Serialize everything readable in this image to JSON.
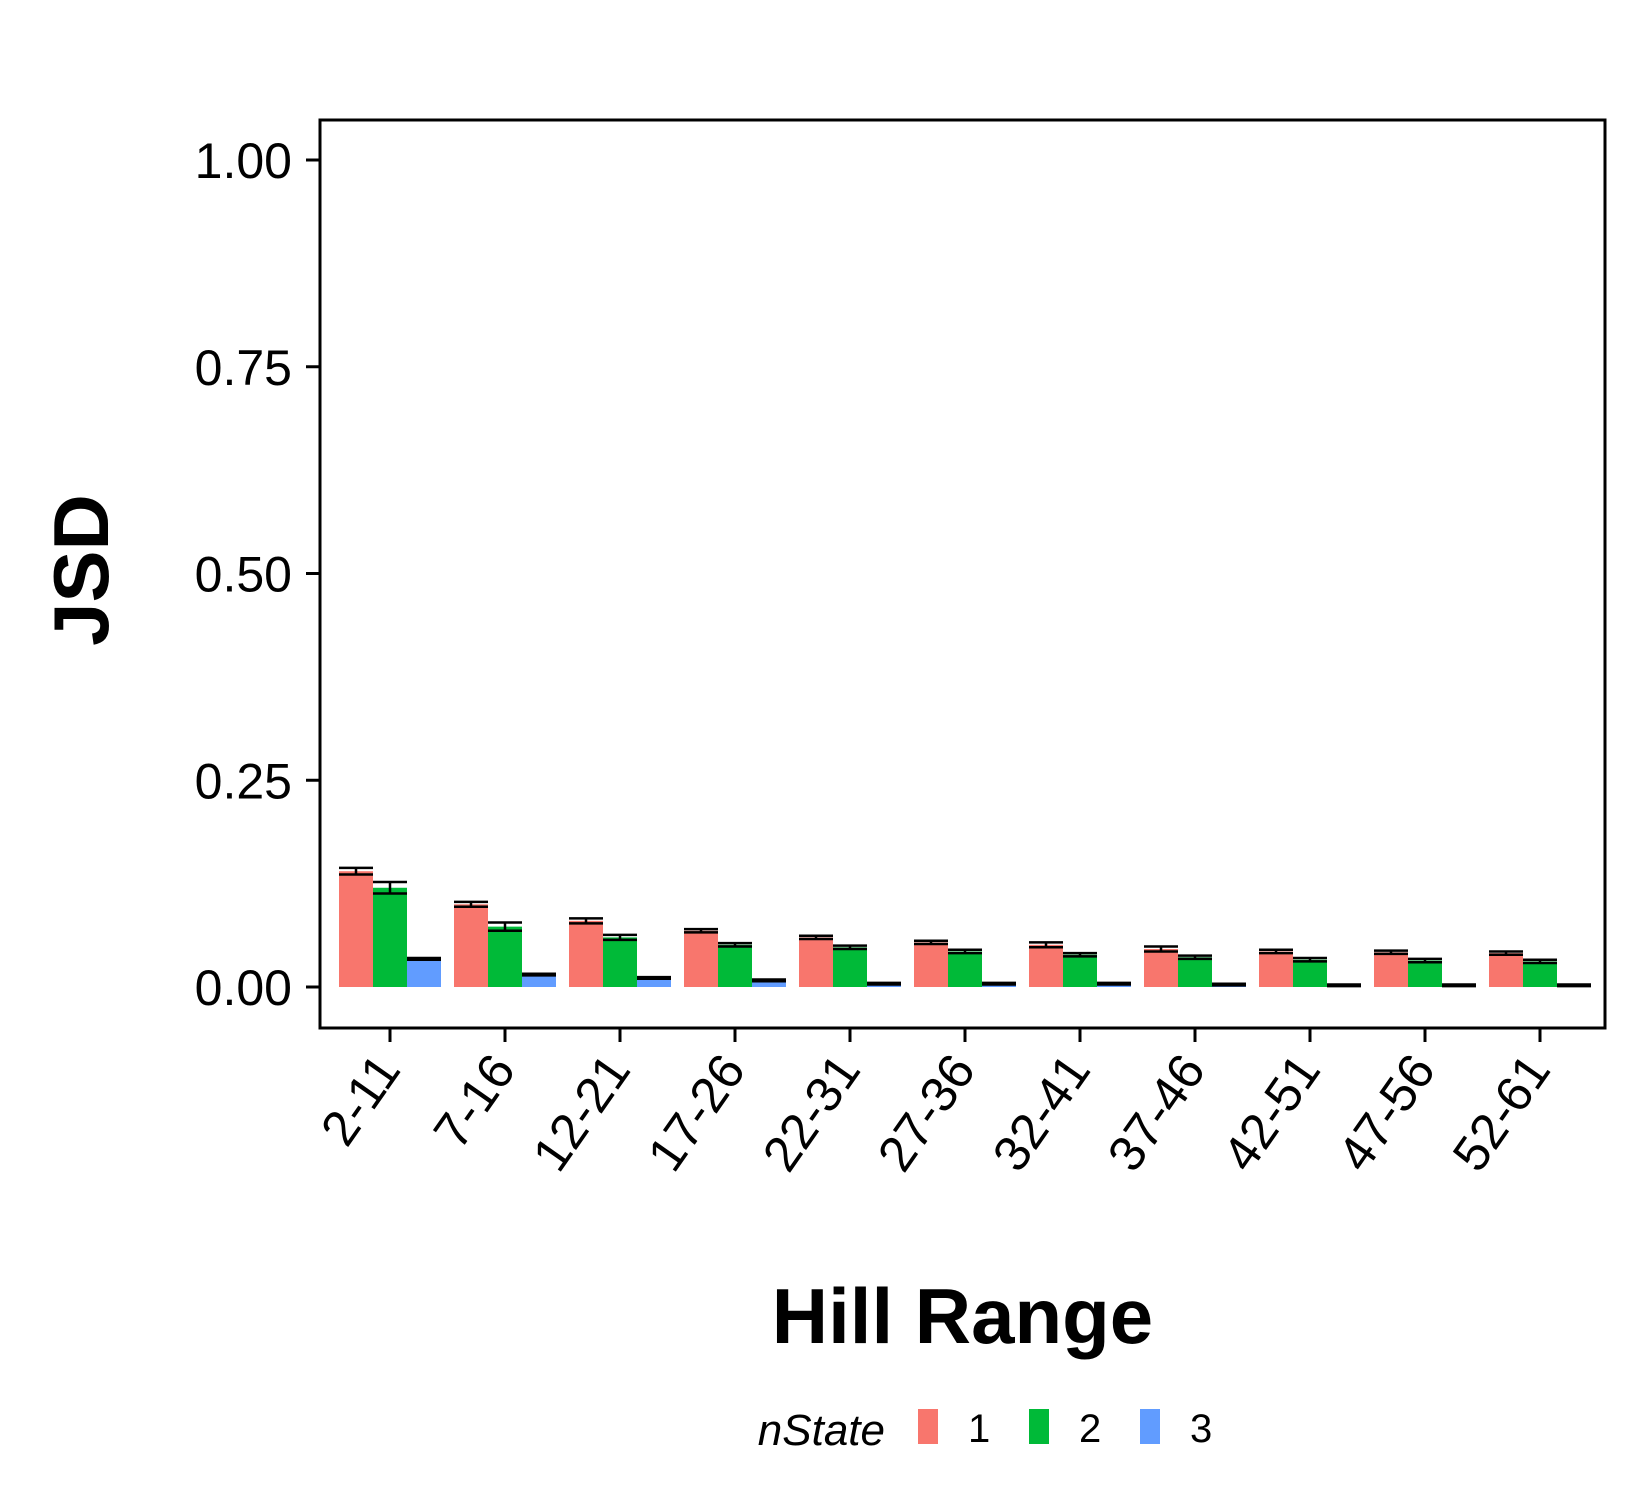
{
  "chart_data": {
    "type": "bar",
    "xlabel": "Hill Range",
    "ylabel": "JSD",
    "ylim": [
      0,
      1
    ],
    "yticks": [
      "0.00",
      "0.25",
      "0.50",
      "0.75",
      "1.00"
    ],
    "categories": [
      "2-11",
      "7-16",
      "12-21",
      "17-26",
      "22-31",
      "27-36",
      "32-41",
      "37-46",
      "42-51",
      "47-56",
      "52-61"
    ],
    "legend": {
      "title": "nState",
      "position": "bottom"
    },
    "grid": false,
    "series": [
      {
        "name": "1",
        "color": "#F8766D",
        "values": [
          0.14,
          0.1,
          0.08,
          0.068,
          0.06,
          0.054,
          0.051,
          0.046,
          0.043,
          0.042,
          0.041
        ],
        "errors": [
          0.004,
          0.003,
          0.003,
          0.002,
          0.002,
          0.002,
          0.003,
          0.003,
          0.002,
          0.002,
          0.002
        ]
      },
      {
        "name": "2",
        "color": "#00BA38",
        "values": [
          0.12,
          0.073,
          0.06,
          0.051,
          0.048,
          0.043,
          0.039,
          0.036,
          0.033,
          0.032,
          0.031
        ],
        "errors": [
          0.007,
          0.005,
          0.003,
          0.002,
          0.002,
          0.002,
          0.002,
          0.002,
          0.002,
          0.002,
          0.002
        ]
      },
      {
        "name": "3",
        "color": "#619CFF",
        "values": [
          0.034,
          0.015,
          0.011,
          0.008,
          0.004,
          0.004,
          0.004,
          0.003,
          0.002,
          0.002,
          0.002
        ],
        "errors": [
          0.001,
          0.001,
          0.001,
          0.001,
          0.001,
          0.001,
          0.001,
          0.001,
          0.001,
          0.001,
          0.001
        ]
      }
    ]
  }
}
